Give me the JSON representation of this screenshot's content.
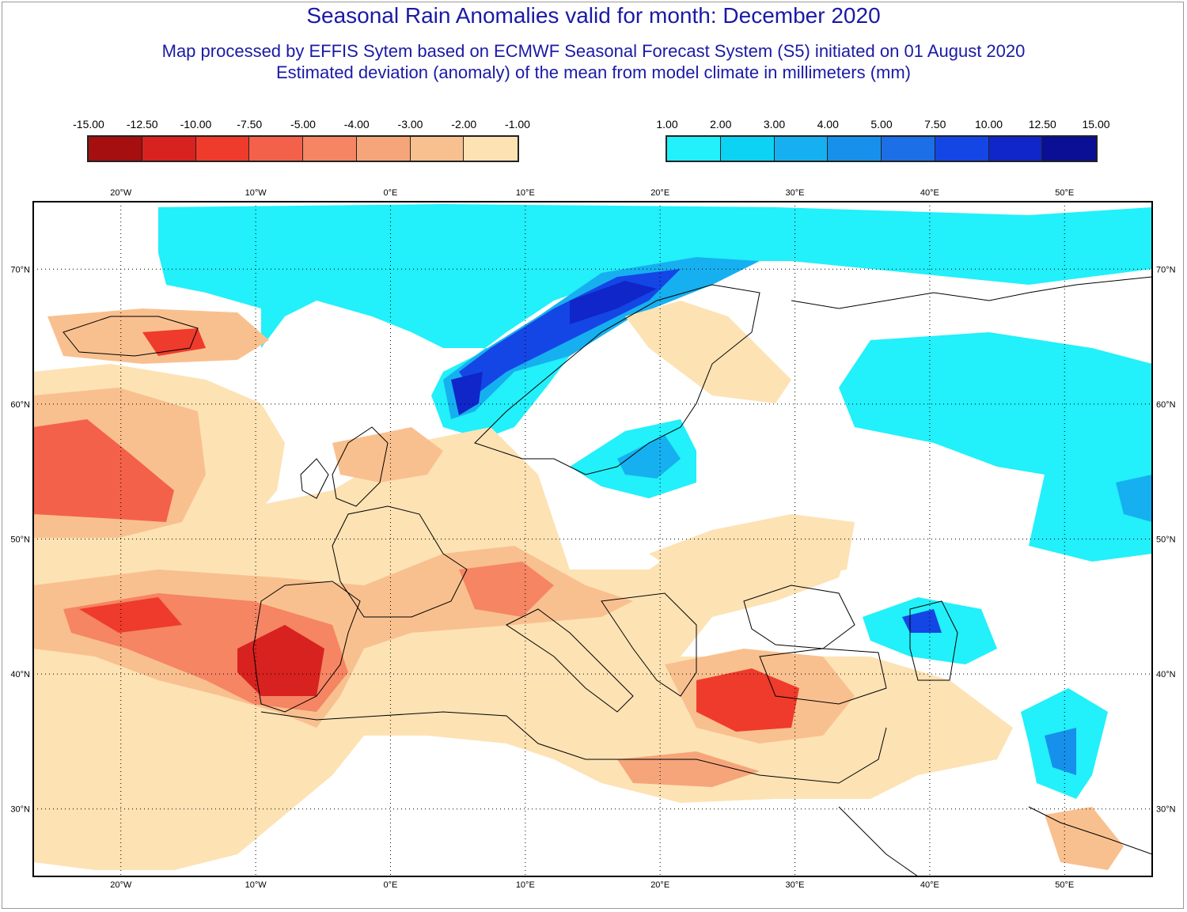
{
  "title": "Seasonal Rain Anomalies valid for month: December 2020",
  "subtitle_1": "Map processed by EFFIS Sytem based on ECMWF Seasonal Forecast System (S5) initiated on 01 August 2020",
  "subtitle_2": "Estimated deviation (anomaly) of the mean from model climate in millimeters (mm)",
  "legend_negative": {
    "labels": [
      "-15.00",
      "-12.50",
      "-10.00",
      "-7.50",
      "-5.00",
      "-4.00",
      "-3.00",
      "-2.00",
      "-1.00"
    ],
    "colors": [
      "#a50f0f",
      "#d8221f",
      "#ef3b2c",
      "#f4614a",
      "#f58563",
      "#f6a57b",
      "#f9c08f",
      "#fde2b4"
    ]
  },
  "legend_positive": {
    "labels": [
      "1.00",
      "2.00",
      "3.00",
      "4.00",
      "5.00",
      "7.50",
      "10.00",
      "12.50",
      "15.00"
    ],
    "colors": [
      "#22f0fa",
      "#0cd3f4",
      "#16b0f0",
      "#1790eb",
      "#1c6fe6",
      "#1446e6",
      "#1026c8",
      "#0a0f95"
    ]
  },
  "map": {
    "lon_range": [
      -26.5,
      56.5
    ],
    "lat_range": [
      25.0,
      75.0
    ],
    "lon_ticks": [
      "20°W",
      "10°W",
      "0°E",
      "10°E",
      "20°E",
      "30°E",
      "40°E",
      "50°E"
    ],
    "lat_ticks": [
      "70°N",
      "60°N",
      "50°N",
      "40°N",
      "30°N"
    ],
    "grid": "dotted",
    "land_outline_color": "#000000",
    "ocean_background": "#ffffff"
  }
}
